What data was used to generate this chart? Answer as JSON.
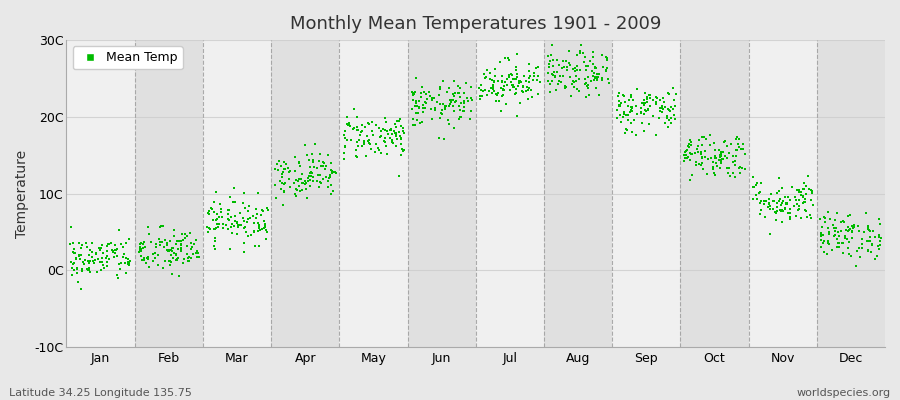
{
  "title": "Monthly Mean Temperatures 1901 - 2009",
  "ylabel": "Temperature",
  "xlabel_bottom_left": "Latitude 34.25 Longitude 135.75",
  "xlabel_bottom_right": "worldspecies.org",
  "legend_label": "Mean Temp",
  "dot_color": "#00bb00",
  "background_color": "#e8e8e8",
  "plot_bg_color": "#f0f0f0",
  "alt_band_color": "#e0e0e0",
  "ylim": [
    -10,
    30
  ],
  "yticks": [
    -10,
    0,
    10,
    20,
    30
  ],
  "ytick_labels": [
    "-10C",
    "0C",
    "10C",
    "20C",
    "30C"
  ],
  "months": [
    "Jan",
    "Feb",
    "Mar",
    "Apr",
    "May",
    "Jun",
    "Jul",
    "Aug",
    "Sep",
    "Oct",
    "Nov",
    "Dec"
  ],
  "month_means": [
    1.5,
    2.5,
    6.5,
    12.5,
    17.5,
    21.5,
    24.5,
    25.5,
    21.0,
    15.0,
    9.0,
    4.5
  ],
  "month_stds": [
    1.5,
    1.5,
    1.5,
    1.5,
    1.5,
    1.5,
    1.5,
    1.5,
    1.5,
    1.5,
    1.5,
    1.5
  ],
  "n_years": 109,
  "seed": 42,
  "dot_size": 4,
  "grid_color": "#cccccc",
  "vline_color": "#999999"
}
